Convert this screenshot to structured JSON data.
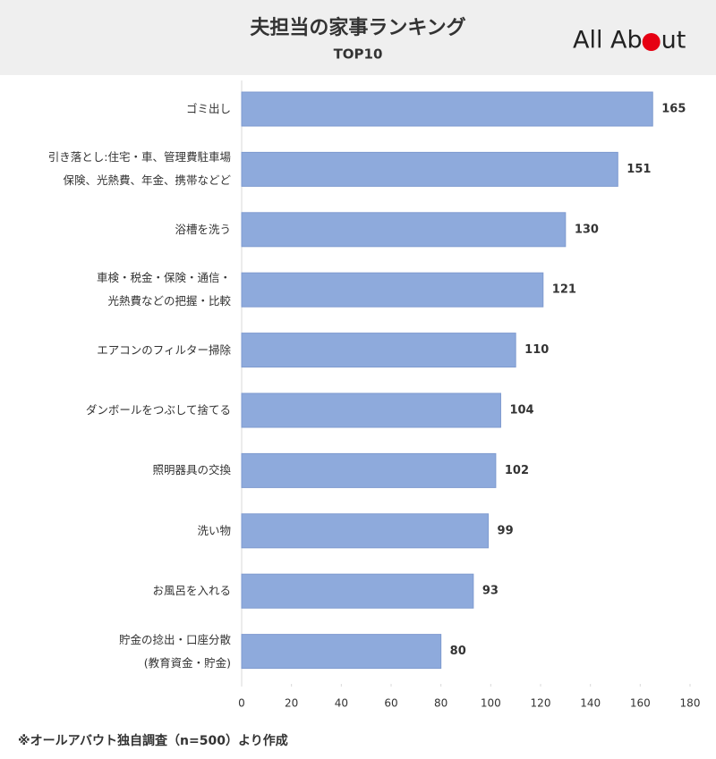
{
  "chart_data": {
    "type": "bar",
    "orientation": "horizontal",
    "title": "夫担当の家事ランキング",
    "subtitle": "TOP10",
    "logo": {
      "before": "All Ab",
      "after": "ut"
    },
    "footnote": "※オールアバウト独自調査（n=500）より作成",
    "categories": [
      "ゴミ出し",
      "引き落とし:住宅・車、管理費駐車場\n保険、光熱費、年金、携帯などど",
      "浴槽を洗う",
      "車検・税金・保険・通信・\n光熱費などの把握・比較",
      "エアコンのフィルター掃除",
      "ダンボールをつぶして捨てる",
      "照明器具の交換",
      "洗い物",
      "お風呂を入れる",
      "貯金の捻出・口座分散\n(教育資金・貯金)"
    ],
    "values": [
      165,
      151,
      130,
      121,
      110,
      104,
      102,
      99,
      93,
      80
    ],
    "color": "#8eaadc",
    "xlim": [
      0,
      180
    ],
    "xticks": [
      0,
      20,
      40,
      60,
      80,
      100,
      120,
      140,
      160,
      180
    ],
    "grid": false
  }
}
